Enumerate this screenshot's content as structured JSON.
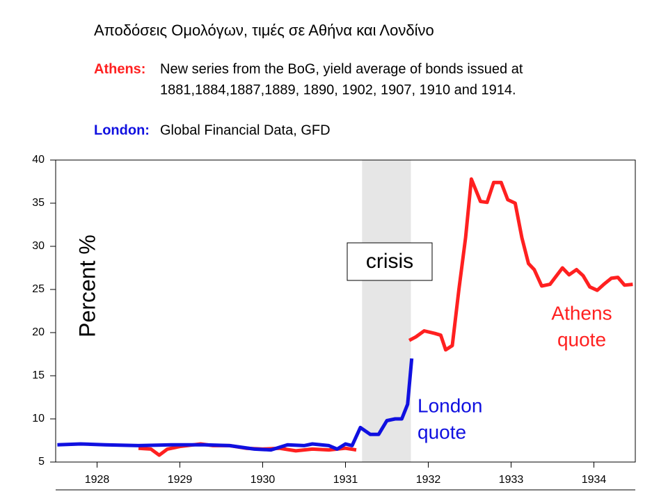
{
  "chart_data": {
    "type": "line",
    "title": "Αποδόσεις Ομολόγων, τιμές σε Αθήνα και Λονδίνο",
    "notes": [
      {
        "label": "Athens:",
        "lines": [
          "New series from the BoG, yield average of bonds issued at",
          "1881,1884,1887,1889,  1890, 1902, 1907, 1910 and 1914."
        ]
      },
      {
        "label": "London:",
        "lines": [
          "Global Financial Data, GFD"
        ]
      }
    ],
    "ylabel": "Percent %",
    "xlim": [
      1928,
      1935
    ],
    "ylim": [
      5,
      40
    ],
    "yticks": [
      5,
      10,
      15,
      20,
      25,
      30,
      35,
      40
    ],
    "xticks": [
      {
        "value": 1928.5,
        "label": "1928"
      },
      {
        "value": 1929.5,
        "label": "1929"
      },
      {
        "value": 1930.5,
        "label": "1930"
      },
      {
        "value": 1931.5,
        "label": "1931"
      },
      {
        "value": 1932.5,
        "label": "1932"
      },
      {
        "value": 1933.5,
        "label": "1933"
      },
      {
        "value": 1934.5,
        "label": "1934"
      }
    ],
    "shade": {
      "x": [
        1931.7,
        1932.29
      ],
      "label": "crisis",
      "color": "#e6e6e6"
    },
    "series": [
      {
        "name": "Athens",
        "color": "#ff2020",
        "x": [
          1929.0,
          1929.15,
          1929.25,
          1929.35,
          1929.5,
          1929.75,
          1929.9,
          1930.1,
          1930.3,
          1930.5,
          1930.7,
          1930.9,
          1931.1,
          1931.3,
          1931.5,
          1931.63,
          1931.9,
          1932.27,
          1932.35,
          1932.45,
          1932.58,
          1932.65,
          1932.71,
          1932.79,
          1932.87,
          1932.95,
          1933.02,
          1933.13,
          1933.21,
          1933.29,
          1933.38,
          1933.46,
          1933.55,
          1933.63,
          1933.71,
          1933.78,
          1933.87,
          1933.97,
          1934.12,
          1934.2,
          1934.29,
          1934.37,
          1934.45,
          1934.54,
          1934.62,
          1934.71,
          1934.79,
          1934.87,
          1934.97
        ],
        "values": [
          6.6,
          6.5,
          5.8,
          6.5,
          6.8,
          7.1,
          6.9,
          6.9,
          6.6,
          6.5,
          6.6,
          6.3,
          6.5,
          6.4,
          6.6,
          6.4,
          null,
          19.1,
          19.5,
          20.2,
          19.9,
          19.7,
          18.0,
          18.5,
          25.0,
          31.0,
          37.8,
          35.2,
          35.1,
          37.4,
          37.4,
          35.4,
          35.0,
          31.0,
          28.0,
          27.3,
          25.4,
          25.6,
          27.5,
          26.7,
          27.3,
          26.6,
          25.3,
          24.9,
          25.6,
          26.3,
          26.4,
          25.5,
          25.6
        ]
      },
      {
        "name": "London",
        "color": "#1010e0",
        "x": [
          1928.02,
          1928.3,
          1928.6,
          1929.0,
          1929.4,
          1929.8,
          1930.1,
          1930.4,
          1930.6,
          1930.8,
          1931.0,
          1931.1,
          1931.3,
          1931.4,
          1931.5,
          1931.58,
          1931.68,
          1931.8,
          1931.9,
          1932.0,
          1932.1,
          1932.18,
          1932.25,
          1932.3
        ],
        "values": [
          7.0,
          7.1,
          7.0,
          6.9,
          7.0,
          7.0,
          6.9,
          6.5,
          6.4,
          7.0,
          6.9,
          7.1,
          6.9,
          6.5,
          7.1,
          6.9,
          9.0,
          8.2,
          8.2,
          9.8,
          10.0,
          10.0,
          11.7,
          17.0
        ]
      }
    ],
    "annotations": [
      {
        "lines": [
          "Athens",
          "quote"
        ],
        "series": 0
      },
      {
        "lines": [
          "London",
          "quote"
        ],
        "series": 1
      }
    ]
  }
}
